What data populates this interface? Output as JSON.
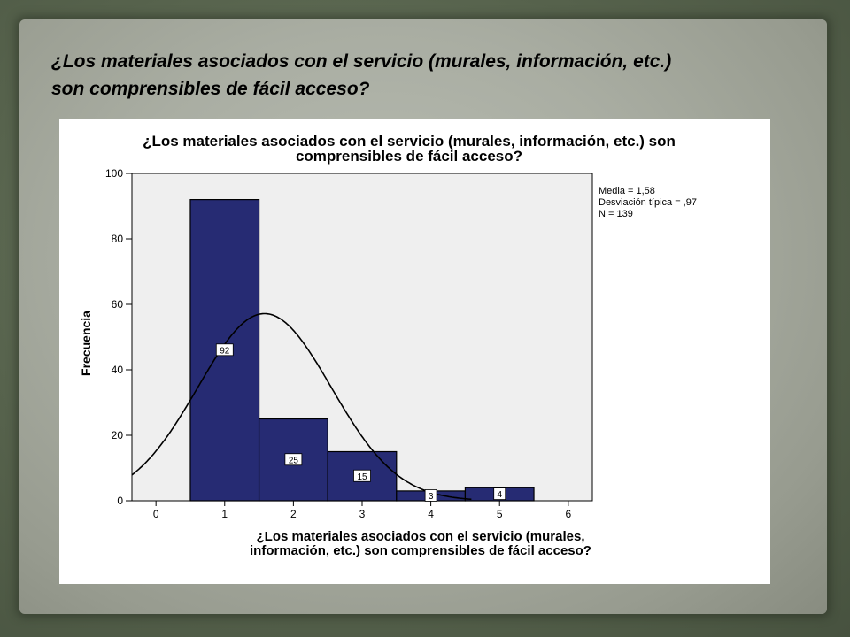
{
  "slide": {
    "title_line1": "¿Los materiales asociados con el servicio (murales, información, etc.)",
    "title_line2": "son comprensibles de fácil acceso?"
  },
  "chart_data": {
    "type": "bar",
    "title_line1": "¿Los materiales asociados con el servicio (murales, información, etc.) son",
    "title_line2": "comprensibles de fácil acceso?",
    "xlabel_line1": "¿Los materiales asociados con el servicio (murales,",
    "xlabel_line2": "información, etc.)  son comprensibles de fácil acceso?",
    "ylabel": "Frecuencia",
    "categories": [
      1,
      2,
      3,
      4,
      5
    ],
    "values": [
      92,
      25,
      15,
      3,
      4
    ],
    "bar_labels": [
      "92",
      "25",
      "15",
      "3",
      "4"
    ],
    "x_ticks": [
      0,
      1,
      2,
      3,
      4,
      5,
      6
    ],
    "y_ticks": [
      0,
      20,
      40,
      60,
      80,
      100
    ],
    "xlim": [
      -0.35,
      6.35
    ],
    "ylim": [
      0,
      100
    ],
    "stats": [
      "Media = 1,58",
      "Desviación típica = ,97",
      "N = 139"
    ],
    "normal_curve": {
      "mean": 1.58,
      "sd": 0.97,
      "n": 139,
      "bin_width": 1
    },
    "grid": false,
    "colors": {
      "bar": "#262b73",
      "plot_bg": "#efefef",
      "curve": "#000000"
    }
  }
}
